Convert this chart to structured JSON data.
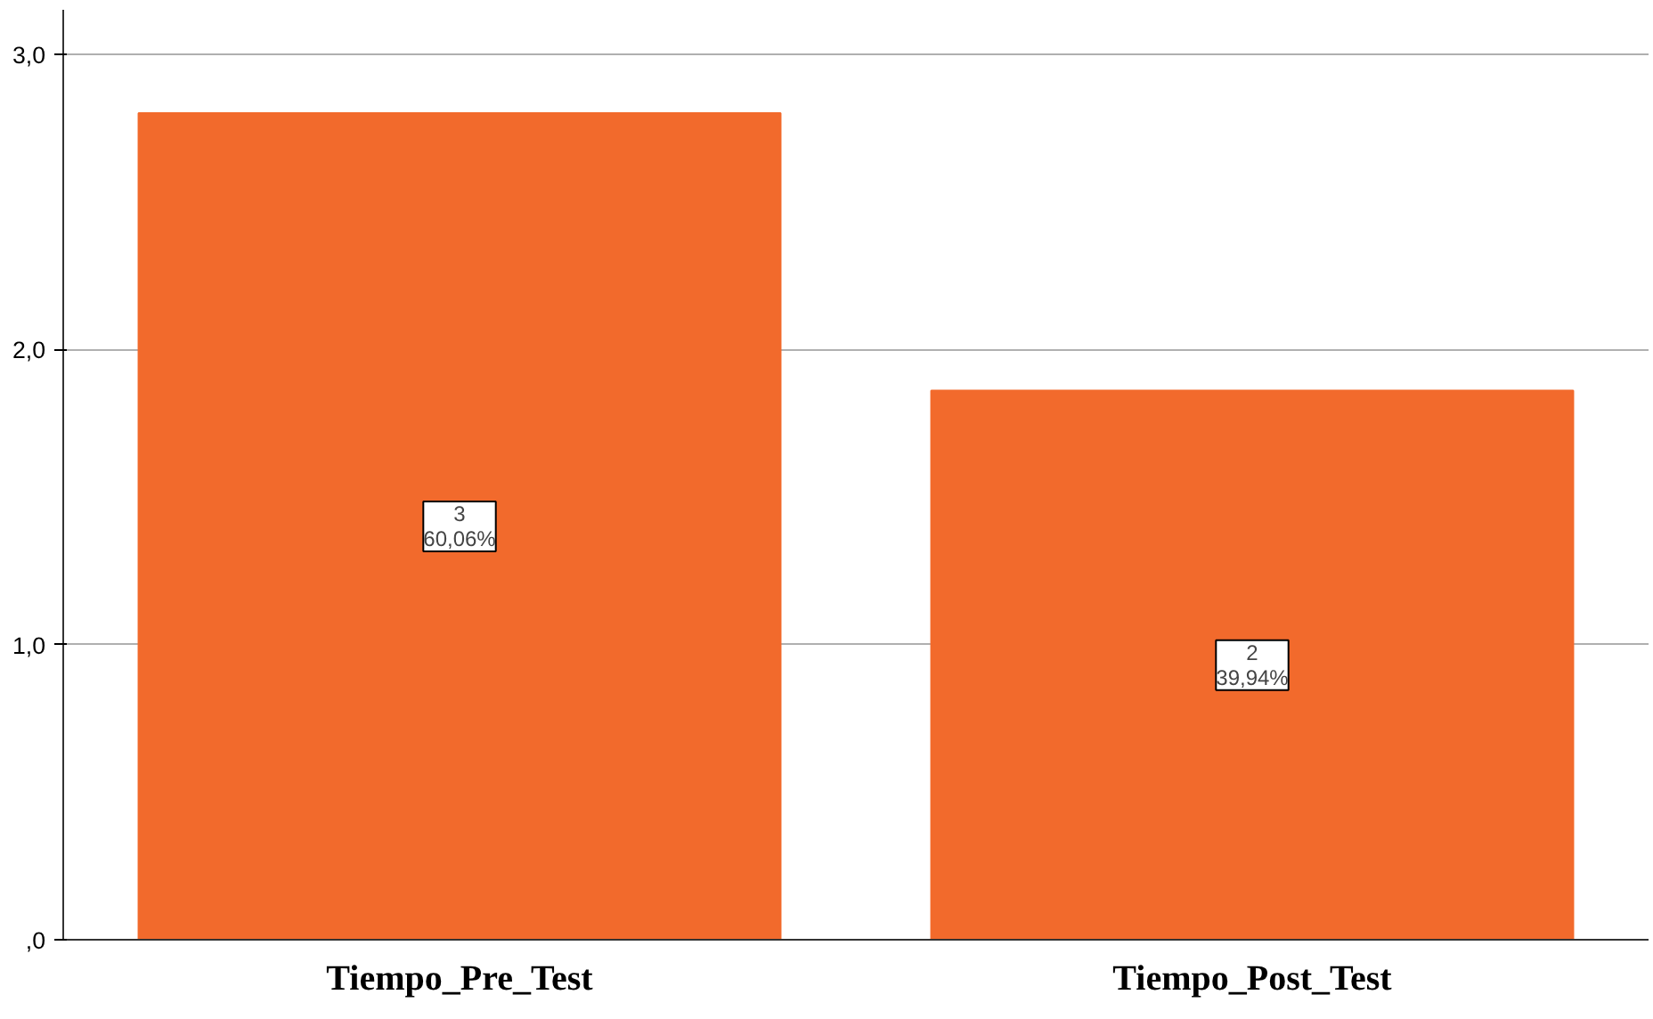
{
  "chart_data": {
    "type": "bar",
    "categories": [
      "Tiempo_Pre_Test",
      "Tiempo_Post_Test"
    ],
    "values": [
      2.8,
      1.86
    ],
    "color": "#f26a2c",
    "value_labels": [
      "3\n60,06%",
      "2\n39,94%"
    ],
    "ylim": [
      0,
      3.15
    ],
    "yticks": [
      {
        "value": 0,
        "label": ",0"
      },
      {
        "value": 1,
        "label": "1,0"
      },
      {
        "value": 2,
        "label": "2,0"
      },
      {
        "value": 3,
        "label": "3,0"
      }
    ],
    "grid": "y"
  }
}
